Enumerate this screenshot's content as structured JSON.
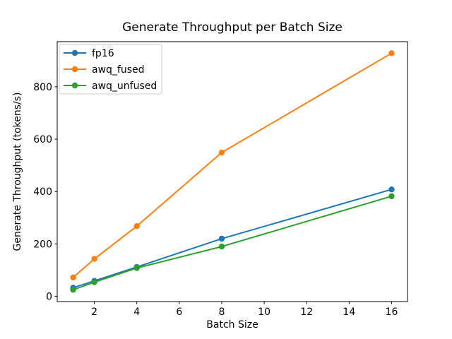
{
  "figure": {
    "title": "Generate Throughput per Batch Size",
    "xlabel": "Batch Size",
    "ylabel": "Generate Throughput (tokens/s)",
    "background_color": "#ffffff",
    "spine_color": "#000000"
  },
  "chart_data": {
    "type": "line",
    "title": "Generate Throughput per Batch Size",
    "xlabel": "Batch Size",
    "ylabel": "Generate Throughput (tokens/s)",
    "x": [
      1,
      2,
      4,
      8,
      16
    ],
    "series": [
      {
        "name": "fp16",
        "color": "#1f77b4",
        "values": [
          33,
          59,
          112,
          220,
          408
        ]
      },
      {
        "name": "awq_fused",
        "color": "#ff7f0e",
        "values": [
          72,
          143,
          268,
          549,
          928
        ]
      },
      {
        "name": "awq_unfused",
        "color": "#2ca02c",
        "values": [
          25,
          54,
          108,
          190,
          382
        ]
      }
    ],
    "xticks": [
      2,
      4,
      6,
      8,
      10,
      12,
      14,
      16
    ],
    "yticks": [
      0,
      200,
      400,
      600,
      800
    ],
    "xlim": [
      0.25,
      16.75
    ],
    "ylim": [
      -20,
      972
    ],
    "marker": "circle",
    "line_width": 2,
    "grid": false,
    "legend": {
      "position": "upper left",
      "entries": [
        "fp16",
        "awq_fused",
        "awq_unfused"
      ],
      "border_color": "#cccccc",
      "background": "#ffffff"
    }
  }
}
